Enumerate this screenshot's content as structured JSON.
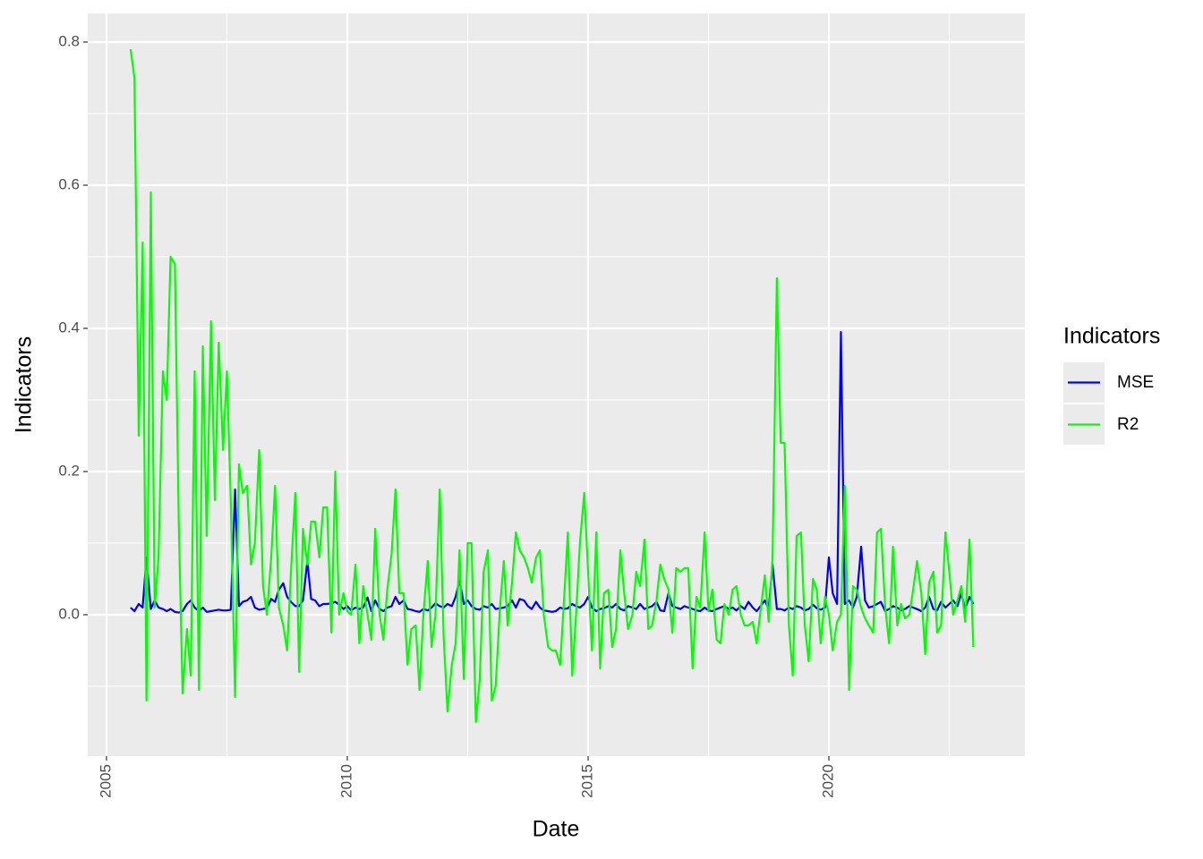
{
  "chart_data": {
    "type": "line",
    "x_label": "Date",
    "y_label": "Indicators",
    "legend_title": "Indicators",
    "legend_position": "right",
    "grid": true,
    "xlim": [
      2004.61,
      2024.07
    ],
    "xticks": [
      2005,
      2010,
      2015,
      2020
    ],
    "ylim": [
      -0.1975,
      0.84
    ],
    "yticks": [
      {
        "value": 0,
        "label": "0.0"
      },
      0.2,
      0.4,
      0.6,
      0.8
    ],
    "x": [
      2005.5,
      2005.58,
      2005.67,
      2005.75,
      2005.83,
      2005.92,
      2006.0,
      2006.08,
      2006.17,
      2006.25,
      2006.33,
      2006.42,
      2006.5,
      2006.58,
      2006.67,
      2006.75,
      2006.83,
      2006.92,
      2007.0,
      2007.08,
      2007.17,
      2007.25,
      2007.33,
      2007.42,
      2007.5,
      2007.58,
      2007.67,
      2007.75,
      2007.83,
      2007.92,
      2008.0,
      2008.08,
      2008.17,
      2008.25,
      2008.33,
      2008.42,
      2008.5,
      2008.58,
      2008.67,
      2008.75,
      2008.83,
      2008.92,
      2009.0,
      2009.08,
      2009.17,
      2009.25,
      2009.33,
      2009.42,
      2009.5,
      2009.58,
      2009.67,
      2009.75,
      2009.83,
      2009.92,
      2010.0,
      2010.08,
      2010.17,
      2010.25,
      2010.33,
      2010.42,
      2010.5,
      2010.58,
      2010.67,
      2010.75,
      2010.83,
      2010.92,
      2011.0,
      2011.08,
      2011.17,
      2011.25,
      2011.33,
      2011.42,
      2011.5,
      2011.58,
      2011.67,
      2011.75,
      2011.83,
      2011.92,
      2012.0,
      2012.08,
      2012.17,
      2012.25,
      2012.33,
      2012.42,
      2012.5,
      2012.58,
      2012.67,
      2012.75,
      2012.83,
      2012.92,
      2013.0,
      2013.08,
      2013.17,
      2013.25,
      2013.33,
      2013.42,
      2013.5,
      2013.58,
      2013.67,
      2013.75,
      2013.83,
      2013.92,
      2014.0,
      2014.08,
      2014.17,
      2014.25,
      2014.33,
      2014.42,
      2014.5,
      2014.58,
      2014.67,
      2014.75,
      2014.83,
      2014.92,
      2015.0,
      2015.08,
      2015.17,
      2015.25,
      2015.33,
      2015.42,
      2015.5,
      2015.58,
      2015.67,
      2015.75,
      2015.83,
      2015.92,
      2016.0,
      2016.08,
      2016.17,
      2016.25,
      2016.33,
      2016.42,
      2016.5,
      2016.58,
      2016.67,
      2016.75,
      2016.83,
      2016.92,
      2017.0,
      2017.08,
      2017.17,
      2017.25,
      2017.33,
      2017.42,
      2017.5,
      2017.58,
      2017.67,
      2017.75,
      2017.83,
      2017.92,
      2018.0,
      2018.08,
      2018.17,
      2018.25,
      2018.33,
      2018.42,
      2018.5,
      2018.58,
      2018.67,
      2018.75,
      2018.83,
      2018.92,
      2019.0,
      2019.08,
      2019.17,
      2019.25,
      2019.33,
      2019.42,
      2019.5,
      2019.58,
      2019.67,
      2019.75,
      2019.83,
      2019.92,
      2020.0,
      2020.08,
      2020.17,
      2020.25,
      2020.33,
      2020.42,
      2020.5,
      2020.58,
      2020.67,
      2020.75,
      2020.83,
      2020.92,
      2021.0,
      2021.08,
      2021.17,
      2021.25,
      2021.33,
      2021.42,
      2021.5,
      2021.58,
      2021.67,
      2021.75,
      2021.83,
      2021.92,
      2022.0,
      2022.08,
      2022.17,
      2022.25,
      2022.33,
      2022.42,
      2022.5,
      2022.58,
      2022.67,
      2022.75,
      2022.83,
      2022.92,
      2023.0
    ],
    "series": [
      {
        "name": "MSE",
        "color": "#0000ff",
        "values": [
          0.01,
          0.005,
          0.015,
          0.01,
          0.08,
          0.008,
          0.02,
          0.01,
          0.008,
          0.005,
          0.008,
          0.004,
          0.003,
          0.005,
          0.015,
          0.02,
          0.01,
          0.005,
          0.01,
          0.004,
          0.005,
          0.006,
          0.007,
          0.006,
          0.006,
          0.007,
          0.175,
          0.012,
          0.018,
          0.02,
          0.025,
          0.01,
          0.007,
          0.008,
          0.009,
          0.022,
          0.018,
          0.035,
          0.044,
          0.025,
          0.018,
          0.012,
          0.012,
          0.02,
          0.075,
          0.022,
          0.02,
          0.012,
          0.015,
          0.015,
          0.016,
          0.018,
          0.014,
          0.008,
          0.012,
          0.006,
          0.01,
          0.008,
          0.01,
          0.024,
          0.005,
          0.02,
          0.008,
          0.005,
          0.01,
          0.012,
          0.025,
          0.015,
          0.02,
          0.008,
          0.007,
          0.005,
          0.004,
          0.008,
          0.006,
          0.01,
          0.016,
          0.012,
          0.01,
          0.015,
          0.012,
          0.025,
          0.048,
          0.015,
          0.02,
          0.012,
          0.008,
          0.007,
          0.012,
          0.01,
          0.015,
          0.008,
          0.009,
          0.01,
          0.012,
          0.02,
          0.01,
          0.022,
          0.02,
          0.012,
          0.008,
          0.018,
          0.01,
          0.006,
          0.005,
          0.004,
          0.005,
          0.01,
          0.008,
          0.009,
          0.015,
          0.012,
          0.01,
          0.015,
          0.025,
          0.01,
          0.005,
          0.008,
          0.009,
          0.012,
          0.01,
          0.015,
          0.008,
          0.006,
          0.012,
          0.01,
          0.008,
          0.015,
          0.008,
          0.01,
          0.012,
          0.018,
          0.006,
          0.005,
          0.03,
          0.012,
          0.01,
          0.008,
          0.012,
          0.01,
          0.008,
          0.006,
          0.005,
          0.01,
          0.006,
          0.005,
          0.008,
          0.01,
          0.012,
          0.008,
          0.01,
          0.006,
          0.012,
          0.008,
          0.018,
          0.01,
          0.005,
          0.012,
          0.02,
          0.008,
          0.07,
          0.008,
          0.008,
          0.006,
          0.01,
          0.008,
          0.012,
          0.01,
          0.006,
          0.008,
          0.014,
          0.009,
          0.007,
          0.01,
          0.08,
          0.03,
          0.015,
          0.395,
          0.015,
          0.02,
          0.01,
          0.025,
          0.095,
          0.02,
          0.01,
          0.012,
          0.015,
          0.018,
          0.005,
          0.008,
          0.012,
          0.01,
          0.006,
          0.008,
          0.012,
          0.01,
          0.008,
          0.005,
          0.01,
          0.025,
          0.008,
          0.006,
          0.018,
          0.01,
          0.015,
          0.02,
          0.012,
          0.03,
          0.008,
          0.025,
          0.015
        ]
      },
      {
        "name": "R2",
        "color": "#00ff00",
        "values": [
          0.79,
          0.75,
          0.25,
          0.52,
          -0.12,
          0.59,
          0.01,
          0.08,
          0.34,
          0.3,
          0.5,
          0.49,
          0.13,
          -0.11,
          -0.02,
          -0.085,
          0.34,
          -0.105,
          0.375,
          0.11,
          0.41,
          0.16,
          0.38,
          0.23,
          0.34,
          0.16,
          -0.115,
          0.21,
          0.17,
          0.18,
          0.07,
          0.1,
          0.23,
          0.04,
          0,
          0.08,
          0.18,
          0.01,
          -0.015,
          -0.05,
          0.06,
          0.17,
          -0.08,
          0.12,
          0.07,
          0.13,
          0.13,
          0.08,
          0.15,
          0.15,
          -0.025,
          0.2,
          0,
          0.03,
          0.005,
          0,
          0.07,
          -0.04,
          0.04,
          0,
          -0.035,
          0.12,
          0,
          -0.035,
          0.035,
          0.085,
          0.175,
          0.03,
          0.03,
          -0.07,
          -0.02,
          -0.015,
          -0.105,
          0,
          0.075,
          -0.045,
          0,
          0.175,
          -0.03,
          -0.135,
          -0.07,
          -0.04,
          0.09,
          -0.09,
          0.1,
          0.1,
          -0.15,
          -0.09,
          0.06,
          0.09,
          -0.12,
          -0.1,
          0.01,
          0.075,
          -0.015,
          0.045,
          0.115,
          0.09,
          0.08,
          0.065,
          0.045,
          0.08,
          0.09,
          0,
          -0.045,
          -0.05,
          -0.05,
          -0.07,
          0.02,
          0.115,
          -0.085,
          0,
          0.1,
          0.17,
          0.06,
          -0.05,
          0.115,
          -0.075,
          0.03,
          0.035,
          -0.045,
          -0.02,
          0.09,
          0.03,
          -0.02,
          0,
          0.06,
          0.04,
          0.105,
          -0.02,
          -0.015,
          0.02,
          0.07,
          0.05,
          0.035,
          -0.025,
          0.065,
          0.06,
          0.065,
          0.065,
          -0.075,
          0.025,
          0.01,
          0.115,
          0.005,
          0.035,
          -0.035,
          -0.04,
          0.015,
          0,
          0.035,
          0.04,
          0,
          -0.015,
          -0.015,
          -0.01,
          -0.04,
          0.005,
          0.055,
          -0.01,
          0.08,
          0.47,
          0.24,
          0.24,
          -0.015,
          -0.085,
          0.11,
          0.115,
          -0.015,
          -0.065,
          0.05,
          0.035,
          -0.04,
          0.025,
          0,
          -0.05,
          -0.01,
          0,
          0.18,
          -0.105,
          0.04,
          0.035,
          0.01,
          -0.005,
          -0.015,
          -0.025,
          0.115,
          0.12,
          0.01,
          -0.04,
          0.095,
          -0.015,
          0.015,
          -0.005,
          0,
          0.035,
          0.075,
          0.03,
          -0.055,
          0.045,
          0.06,
          -0.025,
          -0.015,
          0.115,
          0.06,
          0,
          0.02,
          0.04,
          -0.01,
          0.105,
          -0.045
        ]
      }
    ]
  }
}
